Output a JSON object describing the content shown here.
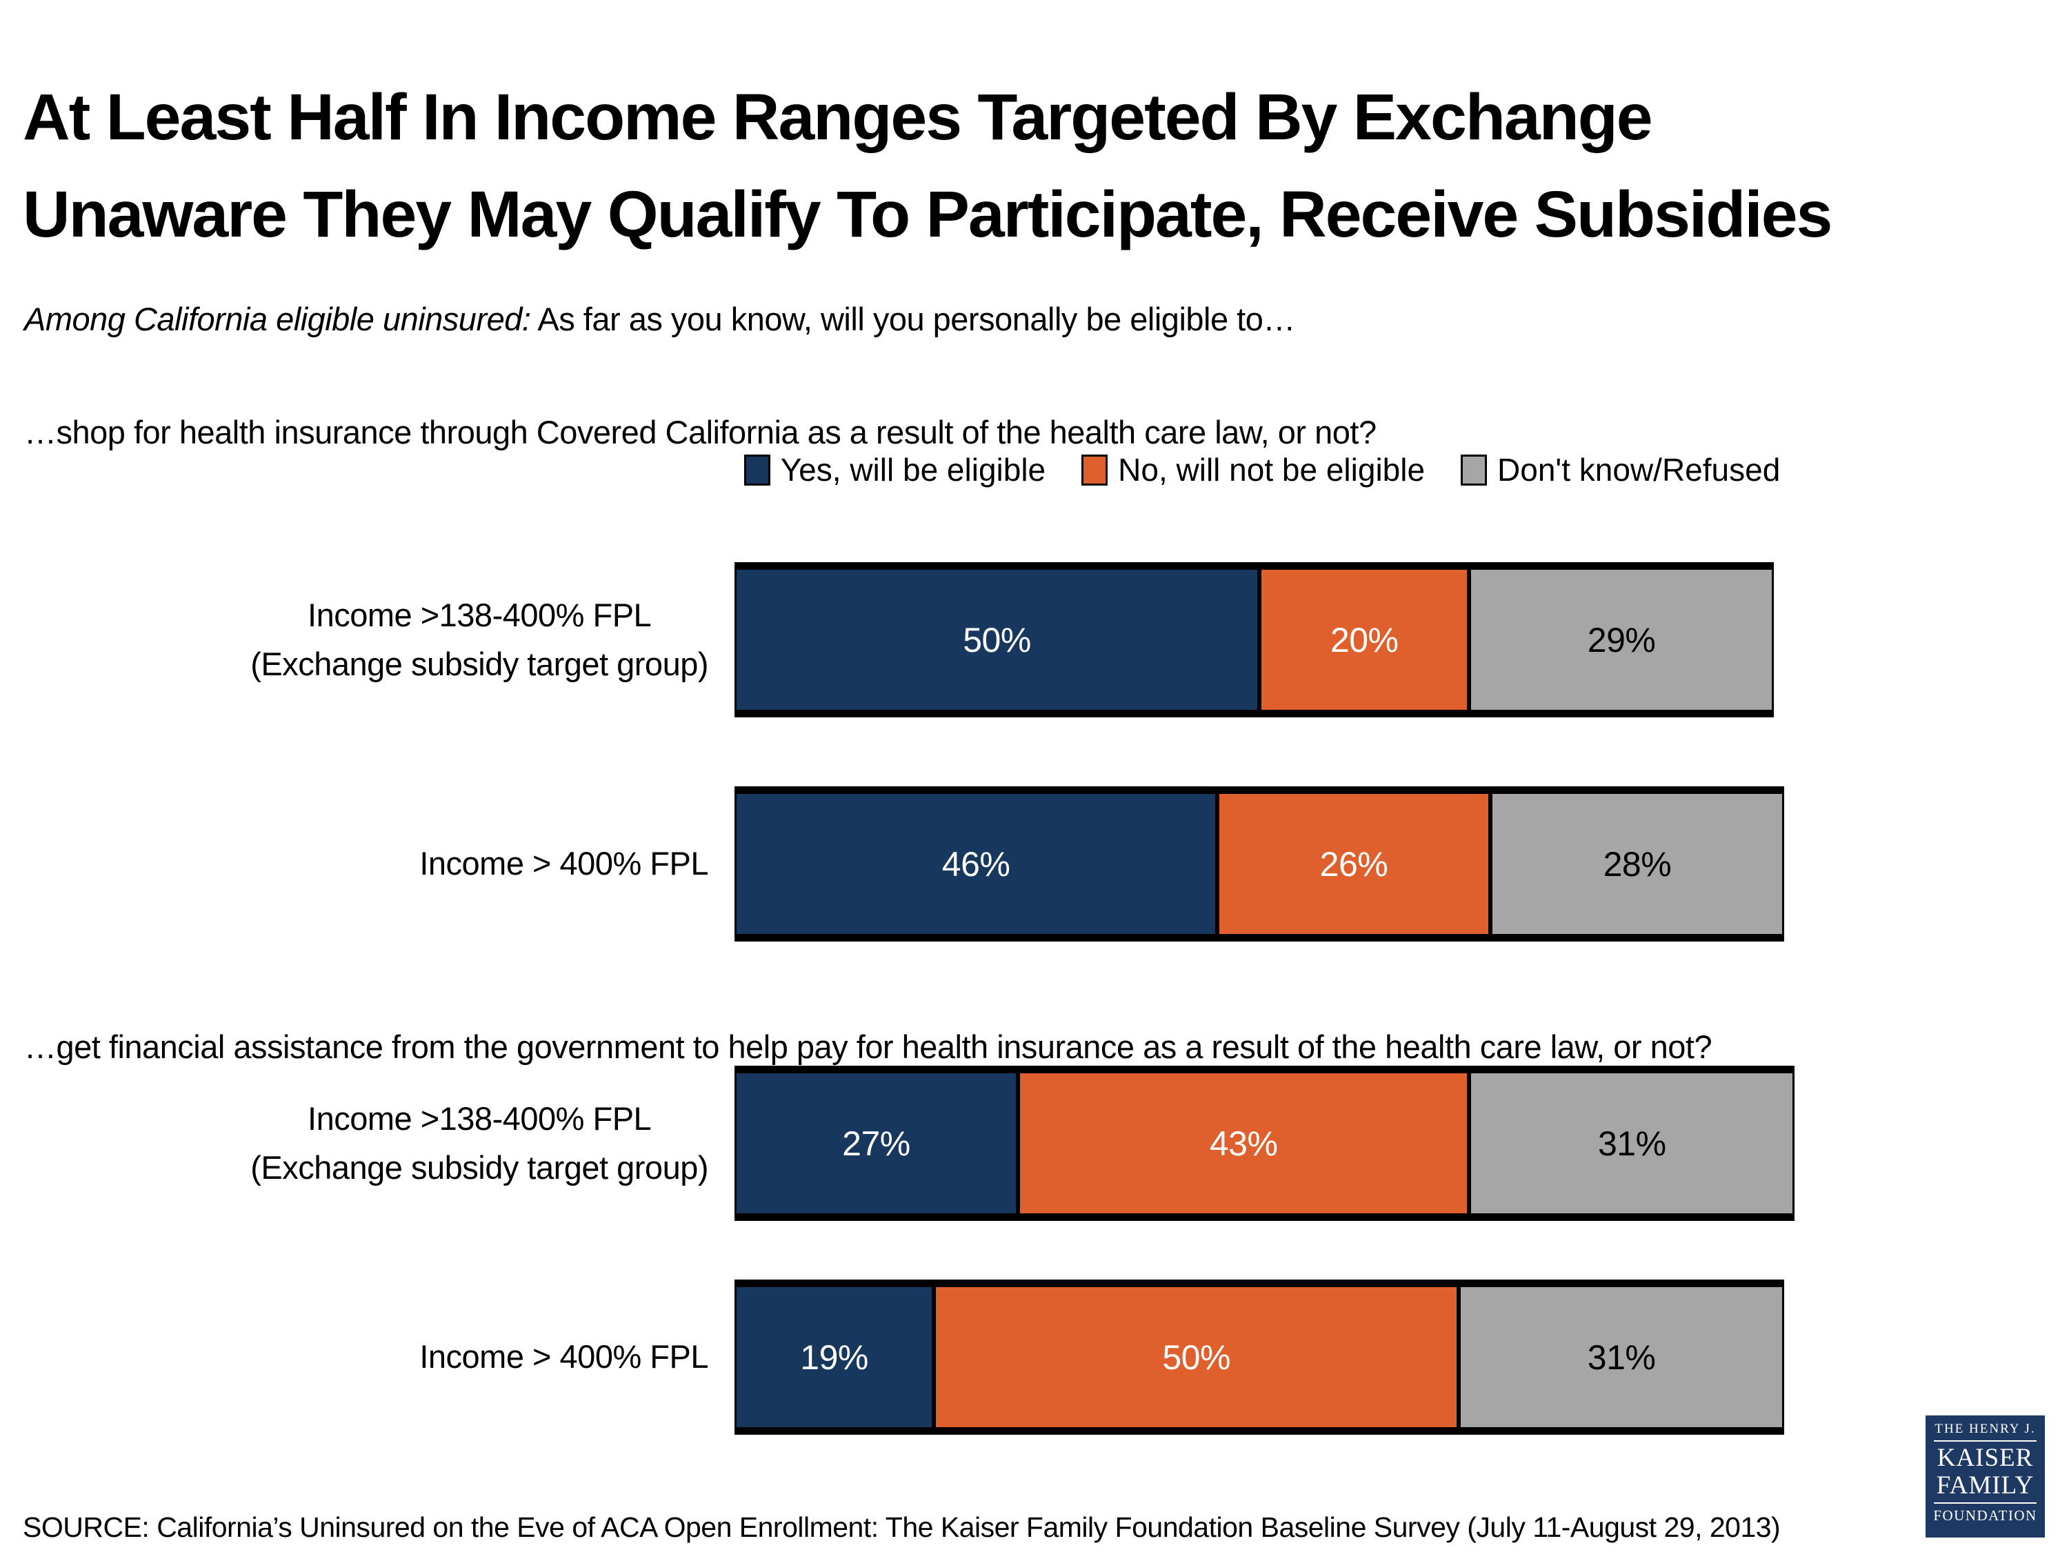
{
  "slide": {
    "title_line1": "At Least Half In Income Ranges Targeted By Exchange",
    "title_line2": "Unaware They May Qualify To Participate, Receive Subsidies",
    "subtitle_italic": "Among California eligible uninsured:",
    "subtitle_rest": " As far as you know, will you personally be eligible to…",
    "source": "SOURCE: California’s Uninsured on the Eve of ACA Open Enrollment: The Kaiser Family Foundation Baseline Survey (July 11-August 29, 2013)"
  },
  "legend": [
    {
      "label": "Yes, will be eligible",
      "color": "#17375E",
      "text_color": "#FFFFFF"
    },
    {
      "label": "No, will not be eligible",
      "color": "#E0602D",
      "text_color": "#FFFFFF"
    },
    {
      "label": "Don't know/Refused",
      "color": "#A6A6A6",
      "text_color": "#000000"
    }
  ],
  "chart_data": [
    {
      "type": "bar",
      "stacked": true,
      "orientation": "horizontal",
      "question": "…shop for health insurance through Covered California as a result of the health care law, or not?",
      "categories": [
        [
          "Income >138-400% FPL",
          "(Exchange subsidy target group)"
        ],
        [
          "Income > 400% FPL"
        ]
      ],
      "series": [
        {
          "name": "Yes, will be eligible",
          "values": [
            50,
            46
          ]
        },
        {
          "name": "No, will not be eligible",
          "values": [
            20,
            26
          ]
        },
        {
          "name": "Don't know/Refused",
          "values": [
            29,
            28
          ]
        }
      ],
      "value_suffix": "%",
      "xlim": [
        0,
        100
      ],
      "grid": false,
      "legend_position": "top-center"
    },
    {
      "type": "bar",
      "stacked": true,
      "orientation": "horizontal",
      "question": "…get financial assistance from the government to help pay for health insurance as a result of the health care law, or not?",
      "categories": [
        [
          "Income >138-400% FPL",
          "(Exchange subsidy target group)"
        ],
        [
          "Income > 400% FPL"
        ]
      ],
      "series": [
        {
          "name": "Yes, will be eligible",
          "values": [
            27,
            19
          ]
        },
        {
          "name": "No, will not be eligible",
          "values": [
            43,
            50
          ]
        },
        {
          "name": "Don't know/Refused",
          "values": [
            31,
            31
          ]
        }
      ],
      "value_suffix": "%",
      "xlim": [
        0,
        100
      ],
      "grid": false
    }
  ],
  "logo": {
    "line1": "THE HENRY J.",
    "line2": "KAISER",
    "line3": "FAMILY",
    "line4": "FOUNDATION"
  }
}
